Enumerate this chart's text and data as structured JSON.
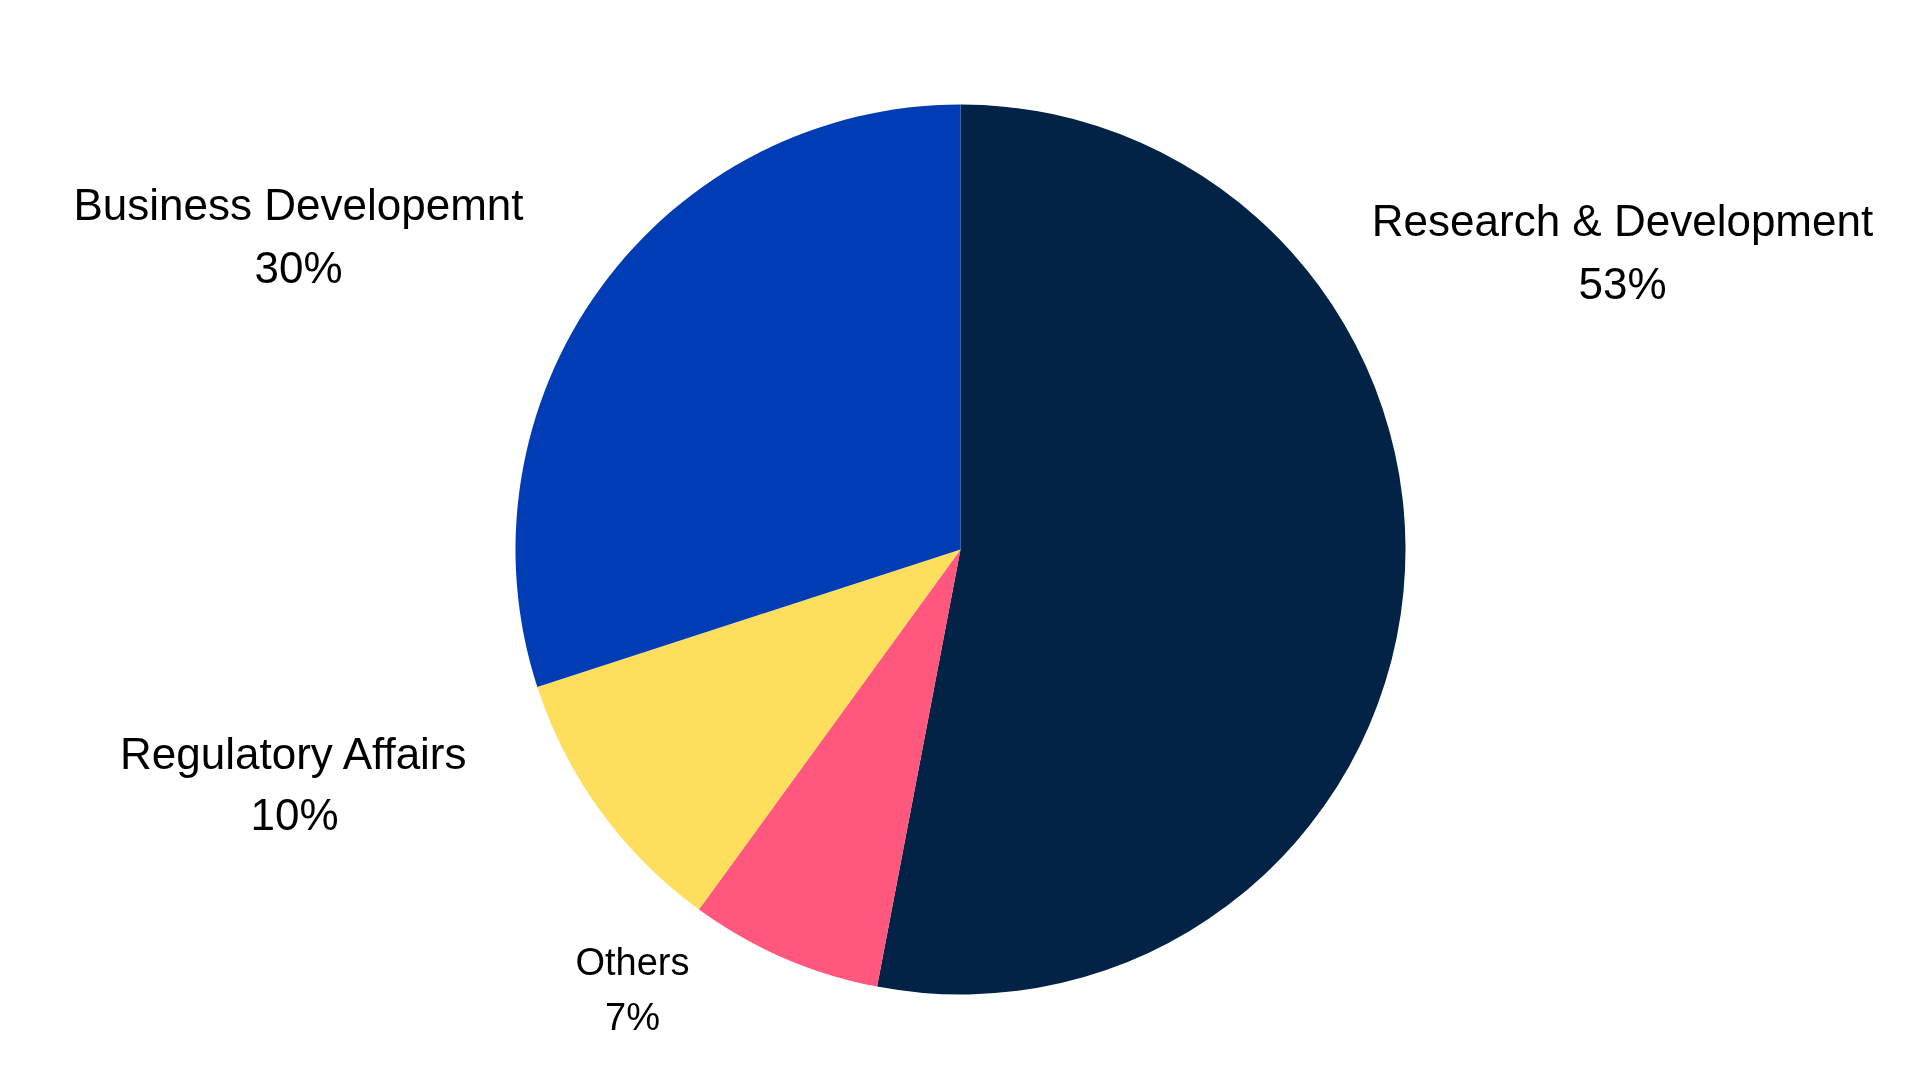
{
  "chart_data": {
    "type": "pie",
    "categories": [
      "Research & Development",
      "Others",
      "Regulatory Affairs",
      "Business Developemnt"
    ],
    "values": [
      53,
      7,
      10,
      30
    ],
    "colors": [
      "#022246",
      "#ff577d",
      "#fede5d",
      "#003cb3"
    ],
    "value_labels": [
      "53%",
      "7%",
      "10%",
      "30%"
    ]
  }
}
